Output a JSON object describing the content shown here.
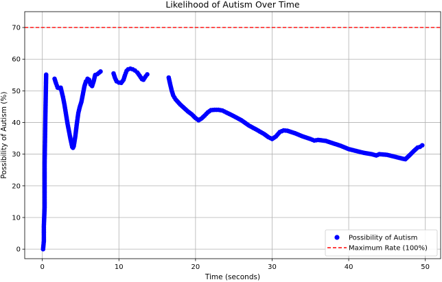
{
  "chart_data": {
    "type": "scatter",
    "title": "Likelihood of Autism Over Time",
    "xlabel": "Time (seconds)",
    "ylabel": "Possibility of Autism (%)",
    "xlim": [
      -2.3,
      52
    ],
    "ylim": [
      -3,
      75
    ],
    "xticks": [
      0,
      10,
      20,
      30,
      40,
      50
    ],
    "yticks": [
      0,
      10,
      20,
      30,
      40,
      50,
      60,
      70
    ],
    "grid": true,
    "legend_position": "bottom-right",
    "reference_line": {
      "name": "Maximum Rate (100%)",
      "y": 70,
      "color": "#ff0000",
      "style": "dashed"
    },
    "series": [
      {
        "name": "Possibility of Autism",
        "color": "#0000ff",
        "points": [
          [
            0.1,
            0.0
          ],
          [
            0.2,
            2.6
          ],
          [
            0.2,
            7.3
          ],
          [
            0.3,
            13.2
          ],
          [
            0.3,
            19.8
          ],
          [
            0.3,
            27.2
          ],
          [
            0.35,
            34.7
          ],
          [
            0.4,
            42.5
          ],
          [
            0.45,
            48.8
          ],
          [
            0.5,
            55.1
          ],
          [
            1.6,
            53.8
          ],
          [
            1.8,
            52.3
          ],
          [
            2.0,
            51.0
          ],
          [
            2.2,
            50.9
          ],
          [
            2.4,
            51.0
          ],
          [
            2.5,
            50.0
          ],
          [
            2.7,
            48.0
          ],
          [
            2.9,
            45.5
          ],
          [
            3.1,
            42.5
          ],
          [
            3.3,
            39.5
          ],
          [
            3.5,
            37.0
          ],
          [
            3.7,
            34.5
          ],
          [
            3.9,
            32.3
          ],
          [
            4.0,
            32.0
          ],
          [
            4.1,
            32.5
          ],
          [
            4.3,
            35.5
          ],
          [
            4.5,
            39.5
          ],
          [
            4.7,
            43.0
          ],
          [
            4.9,
            45.0
          ],
          [
            5.1,
            46.5
          ],
          [
            5.3,
            49.0
          ],
          [
            5.5,
            51.5
          ],
          [
            5.7,
            53.0
          ],
          [
            5.9,
            53.8
          ],
          [
            6.1,
            53.5
          ],
          [
            6.3,
            52.0
          ],
          [
            6.5,
            51.5
          ],
          [
            6.7,
            53.0
          ],
          [
            6.9,
            55.0
          ],
          [
            7.2,
            55.3
          ],
          [
            7.6,
            56.1
          ],
          [
            9.3,
            55.5
          ],
          [
            9.5,
            54.0
          ],
          [
            9.7,
            53.0
          ],
          [
            10.0,
            52.6
          ],
          [
            10.3,
            52.5
          ],
          [
            10.6,
            53.5
          ],
          [
            10.8,
            55.0
          ],
          [
            11.0,
            56.3
          ],
          [
            11.2,
            56.8
          ],
          [
            11.5,
            57.0
          ],
          [
            11.8,
            56.8
          ],
          [
            12.1,
            56.4
          ],
          [
            12.4,
            55.8
          ],
          [
            12.7,
            54.8
          ],
          [
            13.0,
            53.7
          ],
          [
            13.2,
            53.5
          ],
          [
            13.5,
            54.6
          ],
          [
            13.7,
            55.2
          ],
          [
            16.5,
            54.2
          ],
          [
            16.7,
            52.0
          ],
          [
            16.9,
            50.0
          ],
          [
            17.1,
            48.5
          ],
          [
            17.4,
            47.3
          ],
          [
            17.7,
            46.5
          ],
          [
            18.0,
            45.7
          ],
          [
            18.5,
            44.6
          ],
          [
            19.0,
            43.5
          ],
          [
            19.5,
            42.6
          ],
          [
            20.0,
            41.4
          ],
          [
            20.4,
            40.7
          ],
          [
            20.8,
            41.3
          ],
          [
            21.2,
            42.2
          ],
          [
            21.6,
            43.2
          ],
          [
            22.0,
            43.9
          ],
          [
            22.5,
            44.0
          ],
          [
            23.0,
            44.0
          ],
          [
            23.5,
            43.8
          ],
          [
            24.0,
            43.2
          ],
          [
            25.0,
            42.0
          ],
          [
            26.0,
            40.7
          ],
          [
            27.0,
            39.0
          ],
          [
            28.0,
            37.7
          ],
          [
            29.0,
            36.3
          ],
          [
            29.5,
            35.4
          ],
          [
            30.0,
            34.8
          ],
          [
            30.5,
            35.6
          ],
          [
            31.0,
            37.0
          ],
          [
            31.5,
            37.5
          ],
          [
            32.0,
            37.4
          ],
          [
            33.0,
            36.6
          ],
          [
            34.0,
            35.6
          ],
          [
            35.0,
            34.8
          ],
          [
            35.5,
            34.3
          ],
          [
            36.0,
            34.5
          ],
          [
            37.0,
            34.2
          ],
          [
            38.0,
            33.4
          ],
          [
            39.0,
            32.6
          ],
          [
            40.0,
            31.6
          ],
          [
            41.0,
            31.0
          ],
          [
            42.0,
            30.4
          ],
          [
            43.0,
            30.0
          ],
          [
            43.6,
            29.6
          ],
          [
            44.0,
            30.0
          ],
          [
            45.0,
            29.8
          ],
          [
            46.0,
            29.2
          ],
          [
            47.0,
            28.6
          ],
          [
            47.4,
            28.4
          ],
          [
            48.0,
            29.8
          ],
          [
            48.5,
            31.0
          ],
          [
            49.0,
            32.1
          ],
          [
            49.3,
            32.3
          ],
          [
            49.6,
            32.8
          ]
        ]
      }
    ]
  }
}
